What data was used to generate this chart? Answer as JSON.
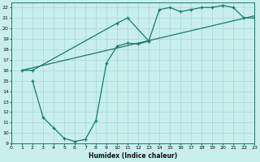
{
  "xlabel": "Humidex (Indice chaleur)",
  "xlim": [
    0,
    23
  ],
  "ylim": [
    9,
    22.5
  ],
  "xticks": [
    0,
    1,
    2,
    3,
    4,
    5,
    6,
    7,
    8,
    9,
    10,
    11,
    12,
    13,
    14,
    15,
    16,
    17,
    18,
    19,
    20,
    21,
    22,
    23
  ],
  "yticks": [
    9,
    10,
    11,
    12,
    13,
    14,
    15,
    16,
    17,
    18,
    19,
    20,
    21,
    22
  ],
  "bg_color": "#c8eeee",
  "grid_color": "#aad8d8",
  "line_color": "#1a7a6a",
  "line1_x": [
    1,
    2,
    10,
    11,
    13,
    14,
    15,
    16,
    17,
    18,
    19,
    20,
    21,
    22,
    23
  ],
  "line1_y": [
    16.0,
    16.0,
    20.5,
    21.0,
    18.8,
    21.8,
    22.0,
    21.6,
    21.8,
    22.0,
    22.0,
    22.2,
    22.0,
    21.0,
    21.0
  ],
  "line2_x": [
    1,
    23
  ],
  "line2_y": [
    16.0,
    21.2
  ],
  "line3_x": [
    2,
    3,
    4,
    5,
    6,
    7,
    8,
    9,
    10,
    11,
    12,
    13
  ],
  "line3_y": [
    15.0,
    11.5,
    10.5,
    9.5,
    9.2,
    9.4,
    11.2,
    16.7,
    18.3,
    18.6,
    18.5,
    18.8
  ]
}
